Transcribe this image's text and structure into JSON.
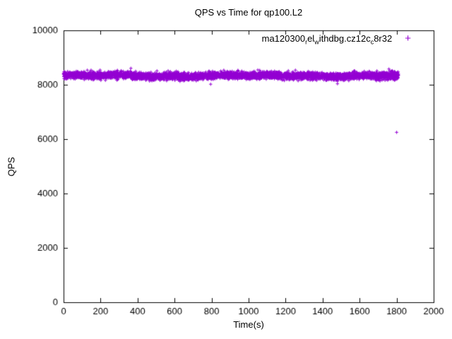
{
  "chart_data": {
    "type": "scatter",
    "title": "QPS vs Time for qp100.L2",
    "xlabel": "Time(s)",
    "ylabel": "QPS",
    "xlim": [
      0,
      2000
    ],
    "ylim": [
      0,
      10000
    ],
    "xticks": [
      0,
      200,
      400,
      600,
      800,
      1000,
      1200,
      1400,
      1600,
      1800,
      2000
    ],
    "yticks": [
      0,
      2000,
      4000,
      6000,
      8000,
      10000
    ],
    "grid": false,
    "plot_border": true,
    "tick_style": "inward-mirrored",
    "legend_position": "top-right-inside",
    "point_color": "#9400d3",
    "axis_color": "#000000",
    "marker": "plus",
    "marker_glyph": "+",
    "series": [
      {
        "name": "ma120300_rel_withdbg.cz12c_c8r32",
        "label_segments": [
          {
            "text": "ma120300"
          },
          {
            "text": "r",
            "sub": true
          },
          {
            "text": "el"
          },
          {
            "text": "w",
            "sub": true
          },
          {
            "text": "ithdbg.cz12c"
          },
          {
            "text": "c",
            "sub": true
          },
          {
            "text": "8r32"
          }
        ],
        "band": {
          "x_min": 0,
          "x_max": 1810,
          "y_mean": 8330,
          "y_std": 65,
          "n_points": 4500
        },
        "outliers": [
          [
            795,
            8020
          ],
          [
            1800,
            6250
          ]
        ]
      }
    ]
  }
}
